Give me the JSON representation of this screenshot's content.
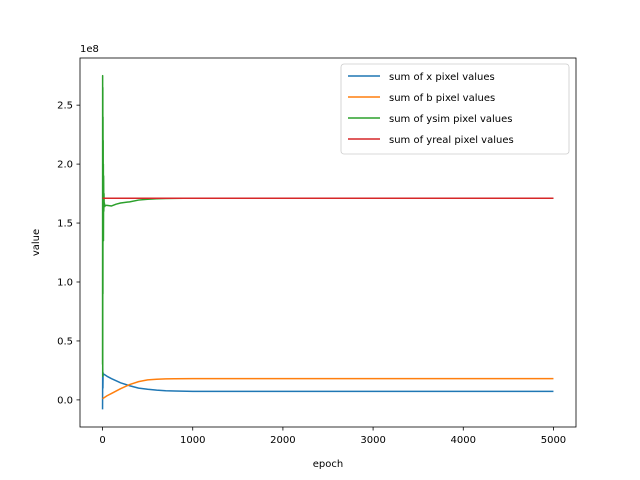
{
  "chart_data": {
    "type": "line",
    "title": "",
    "xlabel": "epoch",
    "ylabel": "value",
    "y_offset_label": "1e8",
    "y_scale": 100000000,
    "xlim": [
      -250,
      5250
    ],
    "ylim": [
      -23000000,
      290000000
    ],
    "x_ticks": [
      0,
      1000,
      2000,
      3000,
      4000,
      5000
    ],
    "x_tick_labels": [
      "0",
      "1000",
      "2000",
      "3000",
      "4000",
      "5000"
    ],
    "y_ticks": [
      0,
      50000000,
      100000000,
      150000000,
      200000000,
      250000000
    ],
    "y_tick_labels": [
      "0.0",
      "0.5",
      "1.0",
      "1.5",
      "2.0",
      "2.5"
    ],
    "grid": false,
    "legend_position": "top-right",
    "series": [
      {
        "name": "sum of x pixel values",
        "color": "#1f77b4",
        "x": [
          0,
          2,
          4,
          6,
          8,
          10,
          20,
          50,
          100,
          200,
          300,
          400,
          500,
          600,
          700,
          800,
          1000,
          1500,
          2000,
          3000,
          4000,
          5000
        ],
        "y": [
          -8000000,
          30000000,
          10000000,
          23000000,
          21000000,
          22000000,
          21500000,
          20000000,
          18000000,
          14500000,
          12000000,
          10000000,
          9000000,
          8300000,
          7800000,
          7500000,
          7200000,
          7200000,
          7200000,
          7200000,
          7200000,
          7200000
        ]
      },
      {
        "name": "sum of b pixel values",
        "color": "#ff7f0e",
        "x": [
          0,
          10,
          50,
          100,
          200,
          300,
          400,
          500,
          600,
          700,
          800,
          1000,
          1500,
          2000,
          3000,
          4000,
          5000
        ],
        "y": [
          1000000,
          1500000,
          3500000,
          5500000,
          9500000,
          13000000,
          15500000,
          17000000,
          17500000,
          17800000,
          17900000,
          18000000,
          18000000,
          18000000,
          18000000,
          18000000,
          18000000
        ]
      },
      {
        "name": "sum of ysim pixel values",
        "color": "#2ca02c",
        "x": [
          0,
          1,
          2,
          3,
          4,
          5,
          6,
          7,
          8,
          9,
          10,
          12,
          14,
          16,
          18,
          20,
          25,
          30,
          50,
          100,
          150,
          200,
          300,
          400,
          500,
          600,
          700,
          800,
          900,
          1000,
          1500,
          2000,
          3000,
          4000,
          5000
        ],
        "y": [
          30000000,
          275000000,
          20000000,
          265000000,
          90000000,
          240000000,
          150000000,
          220000000,
          140000000,
          200000000,
          135000000,
          190000000,
          160000000,
          175000000,
          165000000,
          167000000,
          164000000,
          165000000,
          165000000,
          164500000,
          166000000,
          167000000,
          168000000,
          169500000,
          170200000,
          170600000,
          170800000,
          170900000,
          171000000,
          171000000,
          171000000,
          171000000,
          171000000,
          171000000,
          171000000
        ]
      },
      {
        "name": "sum of yreal pixel values",
        "color": "#d62728",
        "x": [
          0,
          5000
        ],
        "y": [
          171000000,
          171000000
        ]
      }
    ]
  }
}
